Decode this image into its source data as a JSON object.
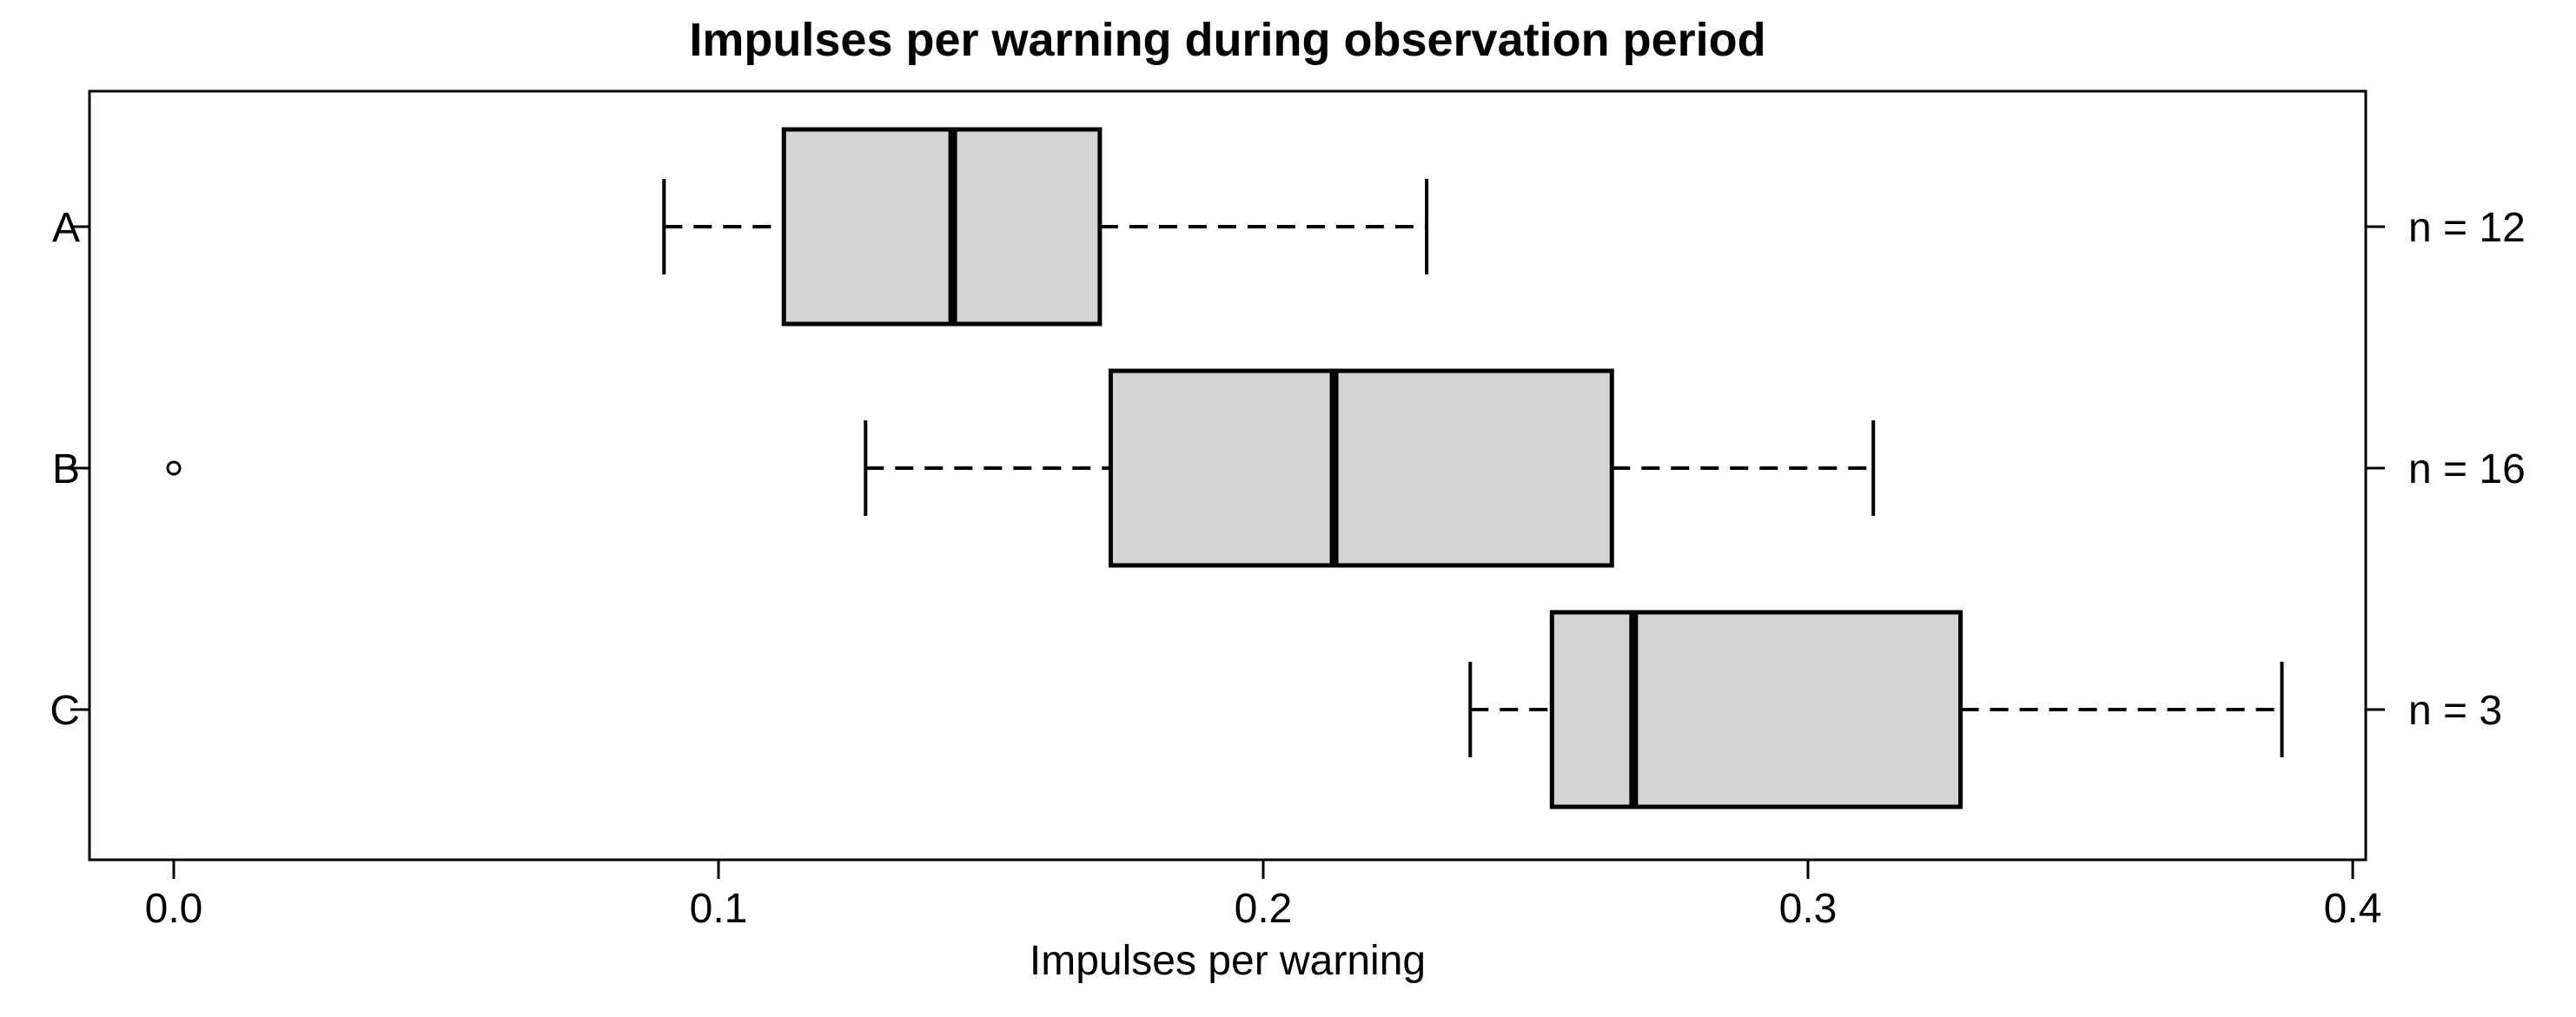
{
  "title": "Impulses per warning during observation period",
  "chart_data": {
    "type": "boxplot",
    "orientation": "horizontal",
    "title": "Impulses per warning during observation period",
    "xlabel": "Impulses per warning",
    "ylabel": "",
    "xlim": [
      0.0,
      0.4
    ],
    "x_ticks": [
      0.0,
      0.1,
      0.2,
      0.3,
      0.4
    ],
    "x_tick_labels": [
      "0.0",
      "0.1",
      "0.2",
      "0.3",
      "0.4"
    ],
    "grid": false,
    "box_fill": "#d4d4d4",
    "line_color": "#000000",
    "background": "#ffffff",
    "groups": [
      {
        "label": "A",
        "n": 12,
        "n_label": "n = 12",
        "whisker_low": 0.09,
        "q1": 0.112,
        "median": 0.143,
        "q3": 0.17,
        "whisker_high": 0.23,
        "outliers": []
      },
      {
        "label": "B",
        "n": 16,
        "n_label": "n = 16",
        "whisker_low": 0.127,
        "q1": 0.172,
        "median": 0.213,
        "q3": 0.264,
        "whisker_high": 0.312,
        "outliers": [
          0.0
        ]
      },
      {
        "label": "C",
        "n": 3,
        "n_label": "n = 3",
        "whisker_low": 0.238,
        "q1": 0.253,
        "median": 0.268,
        "q3": 0.328,
        "whisker_high": 0.387,
        "outliers": []
      }
    ]
  }
}
